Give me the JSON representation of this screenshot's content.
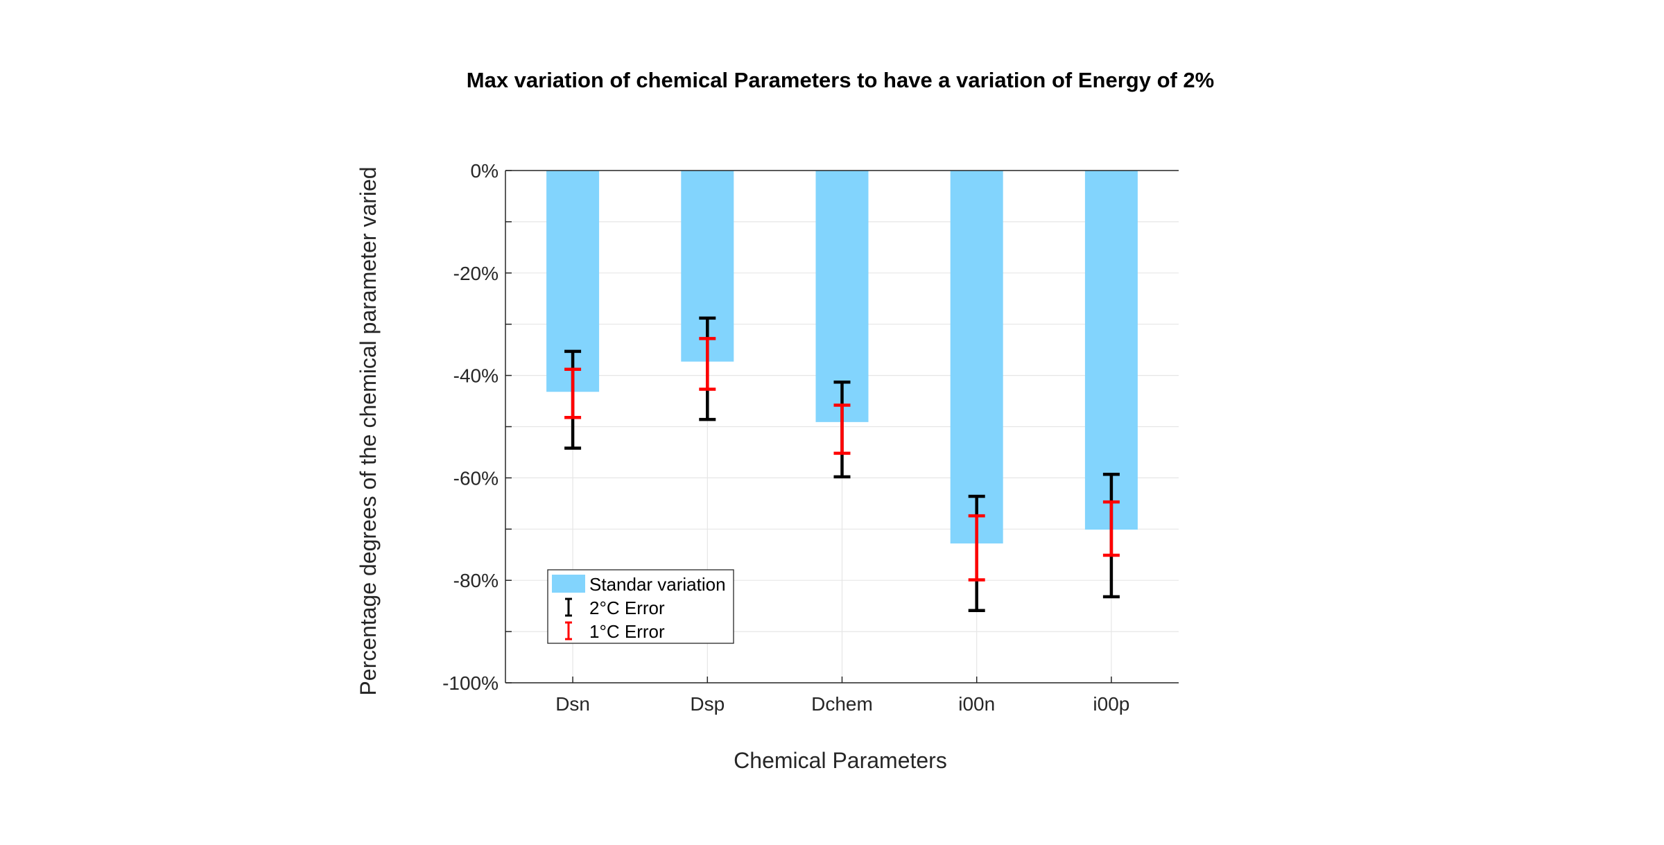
{
  "chart_data": {
    "type": "bar",
    "title": "Max variation of chemical Parameters to have a variation of Energy of 2%",
    "xlabel": "Chemical Parameters",
    "ylabel": "Percentage degrees of the chemical parameter varied",
    "categories": [
      "Dsn",
      "Dsp",
      "Dchem",
      "i00n",
      "i00p"
    ],
    "ylim": [
      -100,
      0
    ],
    "yticks": [
      0,
      -20,
      -40,
      -60,
      -80,
      -100
    ],
    "ytick_labels": [
      "0%",
      "-20%",
      "-40%",
      "-60%",
      "-80%",
      "-100%"
    ],
    "grid": true,
    "legend_position": "bottom-left",
    "series": [
      {
        "name": "Standar variation",
        "values": [
          -43.2,
          -37.3,
          -49.1,
          -72.8,
          -70.1
        ],
        "color": "#82d4fd"
      }
    ],
    "error_bars": [
      {
        "name": "2°C Error",
        "color": "#000000",
        "upper": [
          -35.3,
          -28.8,
          -41.3,
          -63.6,
          -59.3
        ],
        "lower": [
          -54.2,
          -48.6,
          -59.8,
          -85.9,
          -83.2
        ]
      },
      {
        "name": "1°C Error",
        "color": "#ff0000",
        "upper": [
          -38.8,
          -32.8,
          -45.8,
          -67.4,
          -64.7
        ],
        "lower": [
          -48.2,
          -42.7,
          -55.2,
          -79.9,
          -75.1
        ]
      }
    ]
  }
}
